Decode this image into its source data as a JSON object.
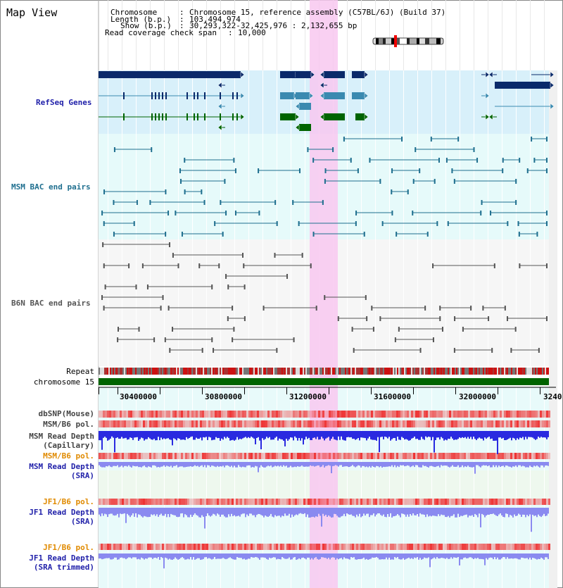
{
  "title": "Map View",
  "header": {
    "chromosome_label": "Chromosome",
    "chromosome_value": "Chromosome 15, reference assembly (C57BL/6J) (Build 37)",
    "length_label": "Length (b.p.)",
    "length_value": "103,494,974",
    "show_label": "Show (b.p.)",
    "show_value": "30,293,322-32,425,976 : 2,132,655 bp",
    "coverage_label": "Read coverage check span",
    "coverage_value": "10,000"
  },
  "tracks": {
    "refseq": "RefSeq Genes",
    "msm_bac": "MSM BAC end pairs",
    "b6n_bac": "B6N BAC end pairs",
    "repeat": "Repeat",
    "chromosome": "chromosome 15",
    "dbsnp": "dbSNP(Mouse)",
    "msm_b6_pol_1": "MSM/B6 pol.",
    "msm_depth_cap_1": "MSM Read Depth",
    "msm_depth_cap_2": "(Capillary)",
    "msm_b6_pol_2": "MSM/B6 pol.",
    "msm_depth_sra_1": "MSM Read Depth",
    "msm_depth_sra_2": "(SRA)",
    "jf1_b6_pol_1": "JF1/B6 pol.",
    "jf1_depth_sra_1": "JF1 Read Depth",
    "jf1_depth_sra_2": "(SRA)",
    "jf1_b6_pol_2": "JF1/B6 pol.",
    "jf1_depth_trim_1": "JF1 Read Depth",
    "jf1_depth_trim_2": "(SRA trimmed)"
  },
  "axis_ticks": [
    "30400000",
    "30800000",
    "31200000",
    "31600000",
    "32000000",
    "3240"
  ],
  "colors": {
    "refseq_navy": "#0a2a6a",
    "refseq_teal": "#3a8ab0",
    "refseq_green": "#006400",
    "msm_line": "#1f6f8f",
    "b6n_line": "#555555",
    "highlight": "#f8c8f0",
    "chrom_green": "#006400",
    "snp_red": "#ee3333",
    "depth_blue": "#2a2ae0",
    "depth_light": "#8a8af0",
    "label_blue": "#2222aa",
    "label_orange": "#e08a00",
    "label_teal": "#1f6f8f"
  }
}
